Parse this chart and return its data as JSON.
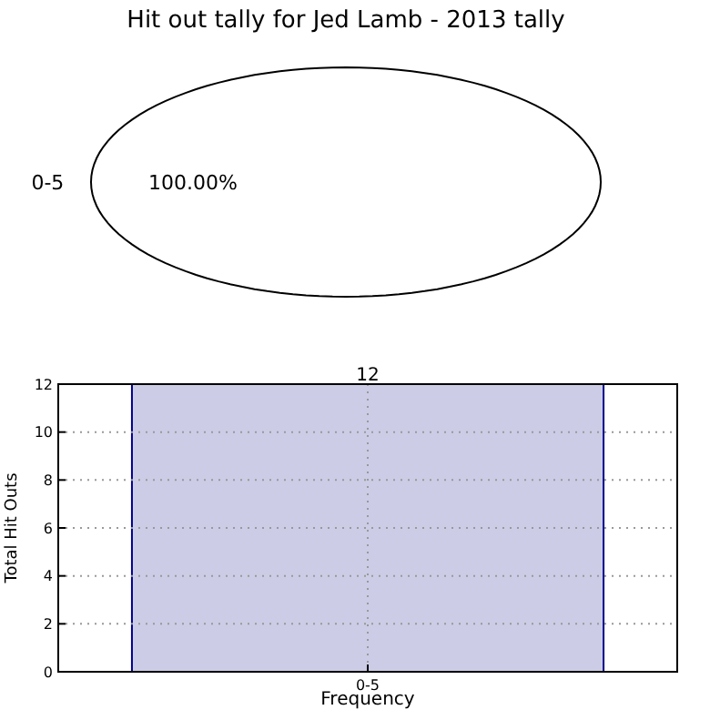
{
  "chart_data": [
    {
      "type": "pie",
      "title": "Hit out tally for Jed Lamb - 2013 tally",
      "categories": [
        "0-5"
      ],
      "values": [
        100
      ],
      "colors": [
        "#ffffff"
      ],
      "value_labels": [
        "100.00%"
      ]
    },
    {
      "type": "bar",
      "categories": [
        "0-5"
      ],
      "values": [
        12
      ],
      "color": "#cccce6",
      "ylim": [
        0,
        12
      ],
      "yticks": [
        0,
        2,
        4,
        6,
        8,
        10,
        12
      ],
      "grid": true,
      "data_labels": true,
      "xlabel": "Frequency",
      "ylabel": "Total Hit Outs"
    }
  ]
}
